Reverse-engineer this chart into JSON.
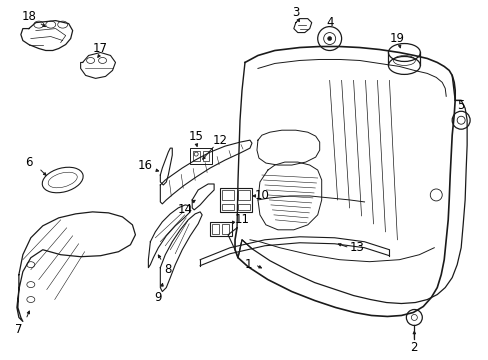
{
  "background_color": "#ffffff",
  "line_color": "#1a1a1a",
  "figsize": [
    4.89,
    3.6
  ],
  "dpi": 100,
  "label_fontsize": 8.5,
  "label_fontsize_small": 7.5
}
